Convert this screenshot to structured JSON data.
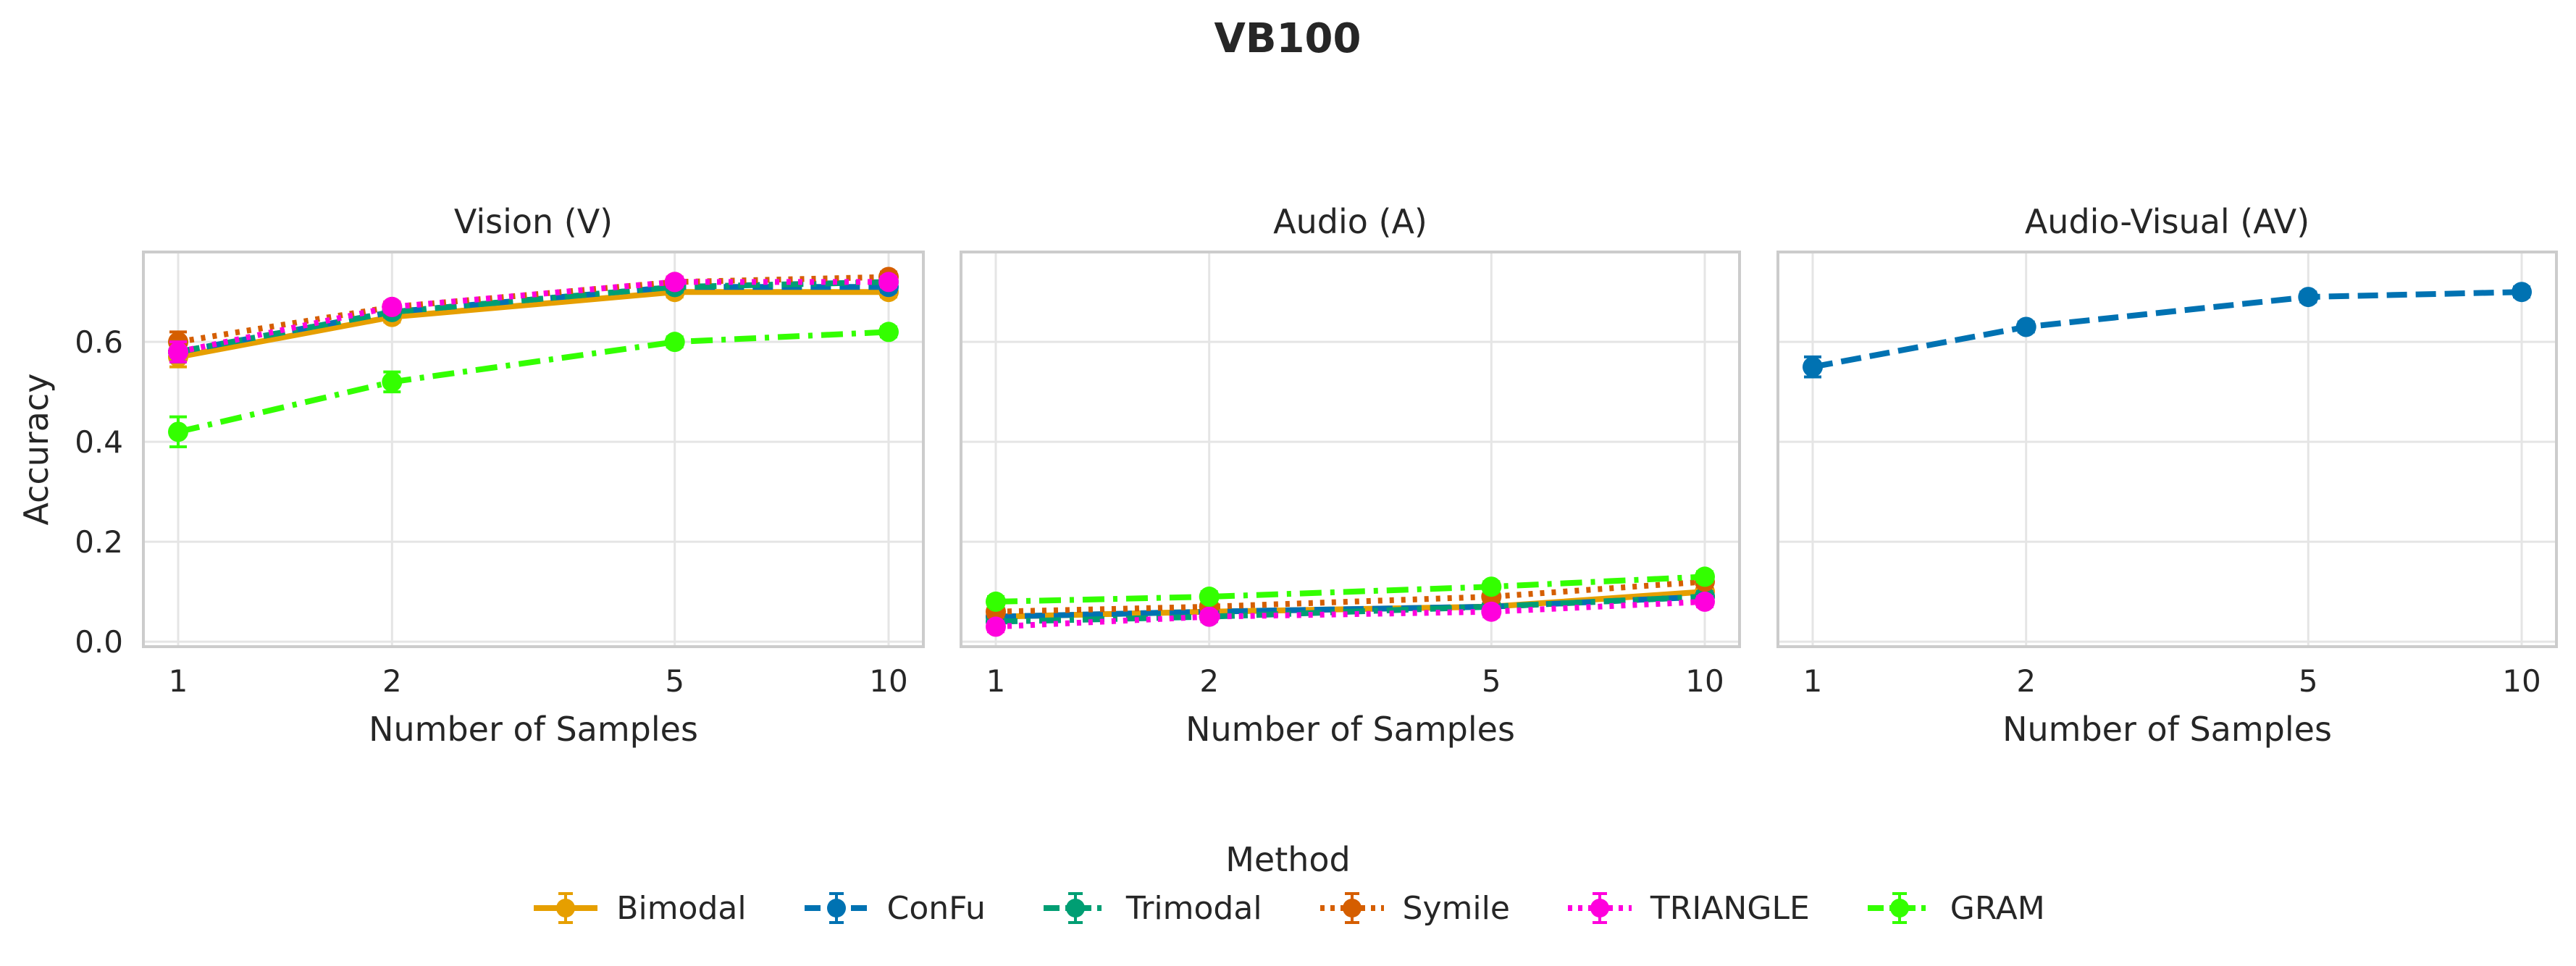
{
  "figure_title": "VB100",
  "colors": {
    "Bimodal": "#E69F00",
    "ConFu": "#0072B2",
    "Trimodal": "#009E73",
    "Symile": "#D55E00",
    "TRIANGLE": "#FF00DD",
    "GRAM": "#33FF00"
  },
  "legend": {
    "title": "Method",
    "items": [
      "Bimodal",
      "ConFu",
      "Trimodal",
      "Symile",
      "TRIANGLE",
      "GRAM"
    ]
  },
  "chart_data": [
    {
      "type": "line",
      "title": "Vision (V)",
      "xlabel": "Number of Samples",
      "ylabel": "Accuracy",
      "x": [
        1,
        2,
        5,
        10
      ],
      "xticks": [
        "1",
        "2",
        "5",
        "10"
      ],
      "xscale": "log",
      "ylim": [
        -0.01,
        0.78
      ],
      "yticks": [
        "0.0",
        "0.2",
        "0.4",
        "0.6"
      ],
      "series": [
        {
          "name": "Bimodal",
          "values": [
            0.57,
            0.65,
            0.7,
            0.7
          ],
          "err": [
            0.02,
            0.01,
            0.01,
            0.01
          ],
          "dash": "solid"
        },
        {
          "name": "ConFu",
          "values": [
            0.58,
            0.66,
            0.71,
            0.71
          ],
          "err": [
            0.02,
            0.01,
            0.01,
            0.01
          ],
          "dash": "dashed"
        },
        {
          "name": "Trimodal",
          "values": [
            0.58,
            0.66,
            0.71,
            0.72
          ],
          "err": [
            0.02,
            0.01,
            0.01,
            0.01
          ],
          "dash": "dashdot"
        },
        {
          "name": "Symile",
          "values": [
            0.6,
            0.67,
            0.72,
            0.73
          ],
          "err": [
            0.02,
            0.01,
            0.01,
            0.01
          ],
          "dash": "dotted"
        },
        {
          "name": "TRIANGLE",
          "values": [
            0.58,
            0.67,
            0.72,
            0.72
          ],
          "err": [
            0.02,
            0.01,
            0.01,
            0.01
          ],
          "dash": "dotted"
        },
        {
          "name": "GRAM",
          "values": [
            0.42,
            0.52,
            0.6,
            0.62
          ],
          "err": [
            0.03,
            0.02,
            0.01,
            0.01
          ],
          "dash": "dashdot"
        }
      ]
    },
    {
      "type": "line",
      "title": "Audio (A)",
      "xlabel": "Number of Samples",
      "ylabel": "",
      "x": [
        1,
        2,
        5,
        10
      ],
      "xticks": [
        "1",
        "2",
        "5",
        "10"
      ],
      "xscale": "log",
      "ylim": [
        -0.01,
        0.78
      ],
      "yticks": [
        "0.0",
        "0.2",
        "0.4",
        "0.6"
      ],
      "series": [
        {
          "name": "Bimodal",
          "values": [
            0.05,
            0.06,
            0.07,
            0.1
          ],
          "err": [
            0.01,
            0.01,
            0.01,
            0.01
          ],
          "dash": "solid"
        },
        {
          "name": "ConFu",
          "values": [
            0.05,
            0.06,
            0.07,
            0.09
          ],
          "err": [
            0.01,
            0.01,
            0.01,
            0.01
          ],
          "dash": "dashed"
        },
        {
          "name": "Trimodal",
          "values": [
            0.04,
            0.05,
            0.07,
            0.09
          ],
          "err": [
            0.01,
            0.01,
            0.01,
            0.01
          ],
          "dash": "dashdot"
        },
        {
          "name": "Symile",
          "values": [
            0.06,
            0.07,
            0.09,
            0.12
          ],
          "err": [
            0.01,
            0.01,
            0.01,
            0.01
          ],
          "dash": "dotted"
        },
        {
          "name": "TRIANGLE",
          "values": [
            0.03,
            0.05,
            0.06,
            0.08
          ],
          "err": [
            0.01,
            0.01,
            0.01,
            0.01
          ],
          "dash": "dotted"
        },
        {
          "name": "GRAM",
          "values": [
            0.08,
            0.09,
            0.11,
            0.13
          ],
          "err": [
            0.01,
            0.01,
            0.01,
            0.01
          ],
          "dash": "dashdot"
        }
      ]
    },
    {
      "type": "line",
      "title": "Audio-Visual (AV)",
      "xlabel": "Number of Samples",
      "ylabel": "",
      "x": [
        1,
        2,
        5,
        10
      ],
      "xticks": [
        "1",
        "2",
        "5",
        "10"
      ],
      "xscale": "log",
      "ylim": [
        -0.01,
        0.78
      ],
      "yticks": [
        "0.0",
        "0.2",
        "0.4",
        "0.6"
      ],
      "series": [
        {
          "name": "ConFu",
          "values": [
            0.55,
            0.63,
            0.69,
            0.7
          ],
          "err": [
            0.02,
            0.01,
            0.01,
            0.01
          ],
          "dash": "dashed"
        }
      ]
    }
  ]
}
